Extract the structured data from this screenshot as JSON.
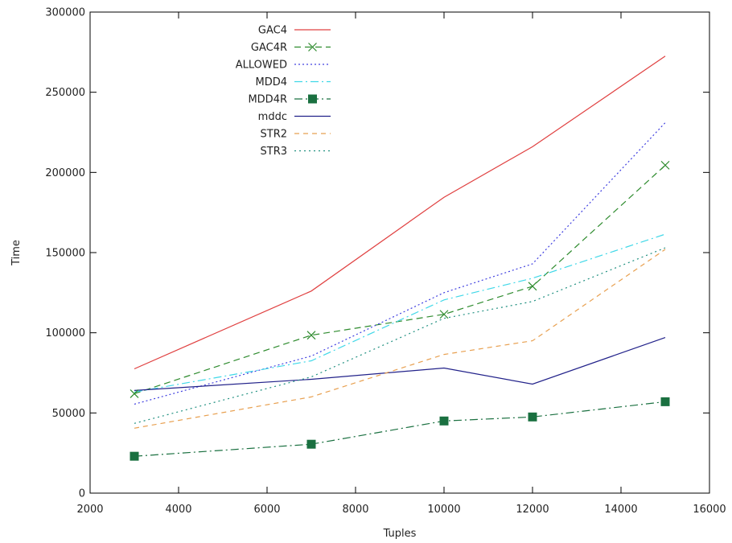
{
  "chart_data": {
    "type": "line",
    "title": "",
    "xlabel": "Tuples",
    "ylabel": "Time",
    "xlim": [
      2000,
      16000
    ],
    "ylim": [
      0,
      300000
    ],
    "xticks": [
      2000,
      4000,
      6000,
      8000,
      10000,
      12000,
      14000,
      16000
    ],
    "yticks": [
      0,
      50000,
      100000,
      150000,
      200000,
      250000,
      300000
    ],
    "grid": false,
    "legend_position": "top-center",
    "x": [
      3000,
      7000,
      10000,
      12000,
      15000
    ],
    "series": [
      {
        "name": "GAC4",
        "values": [
          77500,
          126000,
          184500,
          216000,
          272500
        ],
        "color": "#e04040",
        "dash": "",
        "marker": "none"
      },
      {
        "name": "GAC4R",
        "values": [
          62000,
          98500,
          111500,
          129000,
          204500
        ],
        "color": "#2e8b2e",
        "dash": "8,5",
        "marker": "x"
      },
      {
        "name": "ALLOWED",
        "values": [
          55500,
          85500,
          125000,
          143000,
          231000
        ],
        "color": "#4040e0",
        "dash": "2,3",
        "marker": "none"
      },
      {
        "name": "MDD4",
        "values": [
          63000,
          82500,
          120500,
          134000,
          161500
        ],
        "color": "#40d8e8",
        "dash": "10,4,2,4",
        "marker": "none"
      },
      {
        "name": "MDD4R",
        "values": [
          23000,
          30500,
          45000,
          47500,
          57000
        ],
        "color": "#1a7040",
        "dash": "10,4,2,4",
        "marker": "square"
      },
      {
        "name": "mddc",
        "values": [
          64000,
          71000,
          78000,
          68000,
          97000
        ],
        "color": "#22228a",
        "dash": "",
        "marker": "none"
      },
      {
        "name": "STR2",
        "values": [
          40500,
          60000,
          86500,
          95000,
          152000
        ],
        "color": "#e8a050",
        "dash": "6,5",
        "marker": "none"
      },
      {
        "name": "STR3",
        "values": [
          43500,
          72500,
          109000,
          119500,
          153000
        ],
        "color": "#209080",
        "dash": "2,4",
        "marker": "none"
      }
    ]
  }
}
